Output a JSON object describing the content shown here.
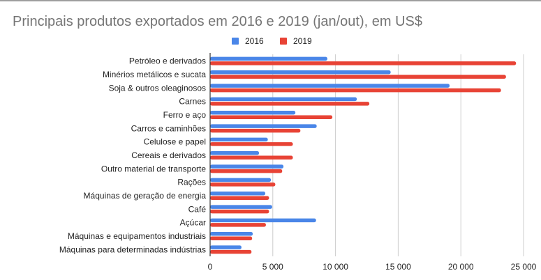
{
  "chart_data": {
    "type": "bar",
    "orientation": "horizontal",
    "title": "Principais produtos exportados em 2016 e 2019 (jan/out), em US$",
    "xlabel": "",
    "ylabel": "",
    "legend_position": "top-center",
    "grid": true,
    "xlim": [
      0,
      25000
    ],
    "x_ticks": [
      0,
      5000,
      10000,
      15000,
      20000,
      25000
    ],
    "x_tick_labels": [
      "0",
      "5 000",
      "10 000",
      "15 000",
      "20 000",
      "25 000"
    ],
    "categories": [
      "Petróleo e derivados",
      "Minérios metálicos e sucata",
      "Soja & outros oleaginosos",
      "Carnes",
      "Ferro e aço",
      "Carros e caminhões",
      "Celulose e papel",
      "Cereais e derivados",
      "Outro material de transporte",
      "Rações",
      "Máquinas de geração de energia",
      "Café",
      "Açúcar",
      "Máquinas e equipamentos industriais",
      "Máquinas para determinadas indústrias"
    ],
    "series": [
      {
        "name": "2016",
        "color": "#4a86e8",
        "values": [
          9350,
          14400,
          19100,
          11700,
          6800,
          8500,
          4600,
          3900,
          5850,
          4850,
          4400,
          4950,
          8450,
          3400,
          2500
        ]
      },
      {
        "name": "2019",
        "color": "#e84335",
        "values": [
          24400,
          23600,
          23200,
          12700,
          9750,
          7200,
          6600,
          6600,
          5750,
          5200,
          4700,
          4700,
          4450,
          3350,
          3300
        ]
      }
    ]
  }
}
